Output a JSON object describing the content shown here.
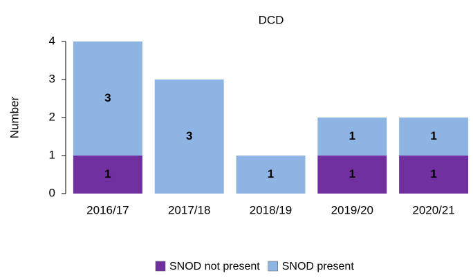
{
  "chart_data": {
    "type": "stacked_bar",
    "title": "DCD",
    "y_label": "Number",
    "categories": [
      "2016/17",
      "2017/18",
      "2018/19",
      "2019/20",
      "2020/21"
    ],
    "series": [
      {
        "name": "SNOD not present",
        "color": "#7030a0",
        "values": [
          1,
          0,
          0,
          1,
          1
        ]
      },
      {
        "name": "SNOD present",
        "color": "#8db4e2",
        "values": [
          3,
          3,
          1,
          1,
          1
        ]
      }
    ],
    "ylim": [
      0,
      4
    ],
    "yticks": [
      0,
      1,
      2,
      3,
      4
    ],
    "legend": "bottom"
  }
}
